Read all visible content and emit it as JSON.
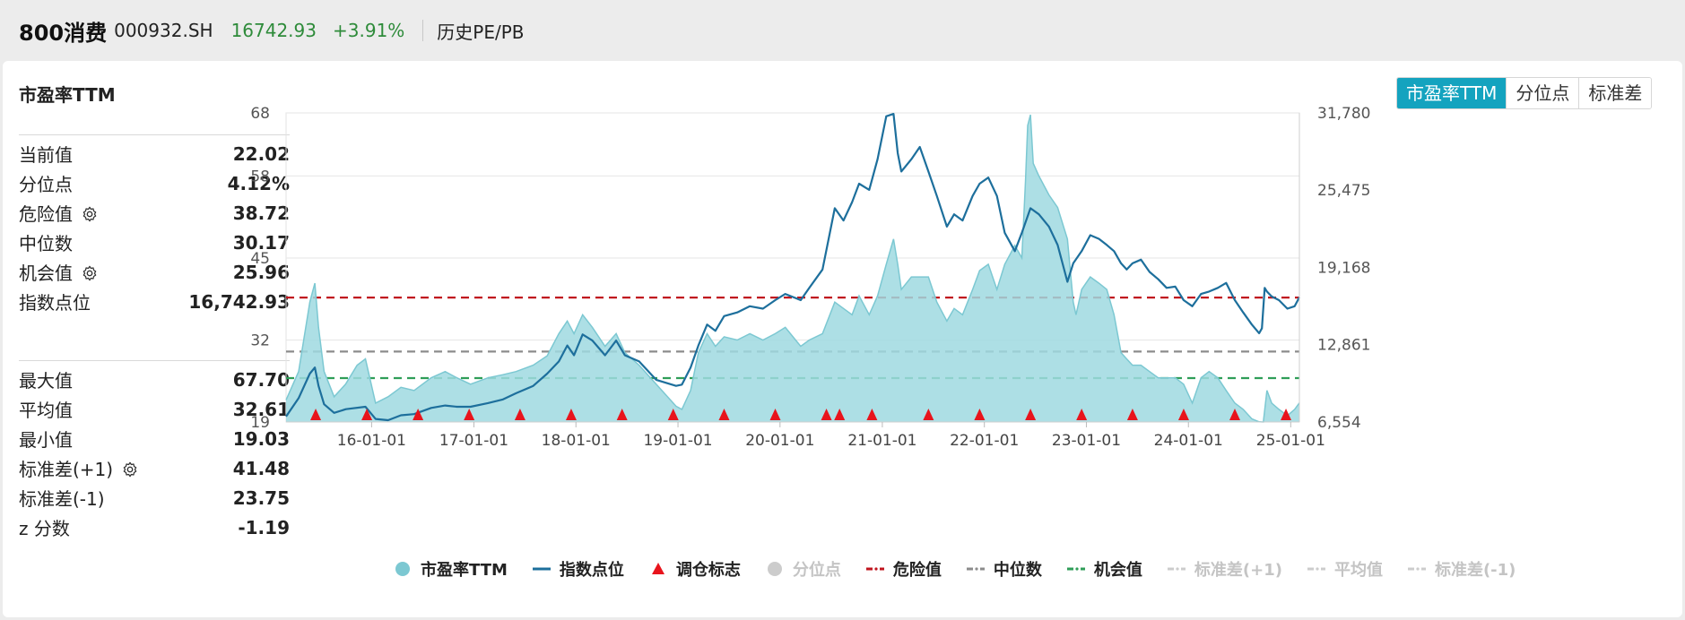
{
  "header": {
    "name": "800消费",
    "code": "000932.SH",
    "price": "16742.93",
    "change": "+3.91%",
    "link": "历史PE/PB"
  },
  "panel": {
    "title": "市盈率TTM",
    "tabs": [
      "市盈率TTM",
      "分位点",
      "标准差"
    ],
    "active_tab": 0
  },
  "stats_top": [
    {
      "label": "当前值",
      "value": "22.02",
      "gear": false
    },
    {
      "label": "分位点",
      "value": "4.12%",
      "gear": false
    },
    {
      "label": "危险值",
      "value": "38.72",
      "gear": true
    },
    {
      "label": "中位数",
      "value": "30.17",
      "gear": false
    },
    {
      "label": "机会值",
      "value": "25.96",
      "gear": true
    },
    {
      "label": "指数点位",
      "value": "16,742.93",
      "gear": false
    }
  ],
  "stats_bottom": [
    {
      "label": "最大值",
      "value": "67.70",
      "gear": false
    },
    {
      "label": "平均值",
      "value": "32.61",
      "gear": false
    },
    {
      "label": "最小值",
      "value": "19.03",
      "gear": false
    },
    {
      "label": "标准差(+1)",
      "value": "41.48",
      "gear": true
    },
    {
      "label": "标准差(-1)",
      "value": "23.75",
      "gear": false
    },
    {
      "label": "z 分数",
      "value": "-1.19",
      "gear": false
    }
  ],
  "colors": {
    "accent": "#14a3bf",
    "area": "#9fd9e0",
    "area_line": "#7cc8d2",
    "index_line": "#1d6f9c",
    "danger": "#c0141e",
    "median": "#8c8c8c",
    "opportunity": "#2f9e58",
    "marker": "#e8141c",
    "up": "#2e8b3a"
  },
  "legend": [
    {
      "label": "市盈率TTM",
      "symbol": "circle",
      "color": "#7cc8d2",
      "active": true
    },
    {
      "label": "指数点位",
      "symbol": "line",
      "color": "#1d6f9c",
      "active": true
    },
    {
      "label": "调仓标志",
      "symbol": "triangle",
      "color": "#e8141c",
      "active": true
    },
    {
      "label": "分位点",
      "symbol": "circle",
      "color": "#cccccc",
      "active": false
    },
    {
      "label": "危险值",
      "symbol": "dash",
      "color": "#c0141e",
      "active": true
    },
    {
      "label": "中位数",
      "symbol": "dash",
      "color": "#8c8c8c",
      "active": true
    },
    {
      "label": "机会值",
      "symbol": "dash",
      "color": "#2f9e58",
      "active": true
    },
    {
      "label": "标准差(+1)",
      "symbol": "dash",
      "color": "#cccccc",
      "active": false
    },
    {
      "label": "平均值",
      "symbol": "dash",
      "color": "#cccccc",
      "active": false
    },
    {
      "label": "标准差(-1)",
      "symbol": "dash",
      "color": "#cccccc",
      "active": false
    }
  ],
  "chart_data": {
    "type": "area",
    "title": "",
    "x_range": [
      "2015-03-01",
      "2025-02-01"
    ],
    "x_ticks": [
      "16-01-01",
      "17-01-01",
      "18-01-01",
      "19-01-01",
      "20-01-01",
      "21-01-01",
      "22-01-01",
      "23-01-01",
      "24-01-01",
      "25-01-01"
    ],
    "y_left_ticks": [
      "19",
      "32",
      "45",
      "58",
      "68"
    ],
    "y_left_range": [
      19,
      68
    ],
    "y_right_ticks": [
      "6,554",
      "12,861",
      "19,168",
      "25,475",
      "31,780"
    ],
    "y_right_range": [
      6554,
      31780
    ],
    "reference_lines": {
      "danger": 38.72,
      "median": 30.17,
      "opportunity": 25.96
    },
    "series": [
      {
        "name": "市盈率TTM",
        "axis": "left",
        "points": [
          [
            "2015-03-01",
            22.5
          ],
          [
            "2015-04-15",
            27
          ],
          [
            "2015-05-25",
            38
          ],
          [
            "2015-06-12",
            41
          ],
          [
            "2015-06-25",
            34
          ],
          [
            "2015-07-15",
            27
          ],
          [
            "2015-08-20",
            23
          ],
          [
            "2015-09-30",
            25
          ],
          [
            "2015-11-10",
            28
          ],
          [
            "2015-12-10",
            29
          ],
          [
            "2016-01-15",
            22
          ],
          [
            "2016-02-29",
            23
          ],
          [
            "2016-04-15",
            24.5
          ],
          [
            "2016-06-01",
            24
          ],
          [
            "2016-08-01",
            26
          ],
          [
            "2016-09-20",
            27
          ],
          [
            "2016-11-01",
            26
          ],
          [
            "2016-12-20",
            25
          ],
          [
            "2017-02-20",
            26
          ],
          [
            "2017-04-15",
            26.5
          ],
          [
            "2017-06-01",
            27
          ],
          [
            "2017-08-01",
            28
          ],
          [
            "2017-09-20",
            29.5
          ],
          [
            "2017-11-01",
            33
          ],
          [
            "2017-12-01",
            35
          ],
          [
            "2017-12-25",
            33
          ],
          [
            "2018-01-25",
            36
          ],
          [
            "2018-03-01",
            34
          ],
          [
            "2018-04-15",
            31
          ],
          [
            "2018-05-25",
            33
          ],
          [
            "2018-06-25",
            30
          ],
          [
            "2018-08-15",
            28
          ],
          [
            "2018-10-15",
            25
          ],
          [
            "2018-12-25",
            21.5
          ],
          [
            "2019-01-15",
            21
          ],
          [
            "2019-02-15",
            24
          ],
          [
            "2019-03-15",
            30
          ],
          [
            "2019-04-15",
            33
          ],
          [
            "2019-05-15",
            31
          ],
          [
            "2019-06-15",
            32.5
          ],
          [
            "2019-08-01",
            32
          ],
          [
            "2019-09-15",
            33
          ],
          [
            "2019-11-01",
            32
          ],
          [
            "2019-12-15",
            33
          ],
          [
            "2020-01-20",
            34
          ],
          [
            "2020-03-15",
            31
          ],
          [
            "2020-04-15",
            32
          ],
          [
            "2020-06-01",
            33
          ],
          [
            "2020-07-15",
            38
          ],
          [
            "2020-08-15",
            37
          ],
          [
            "2020-09-15",
            36
          ],
          [
            "2020-10-10",
            39
          ],
          [
            "2020-11-15",
            36
          ],
          [
            "2020-12-15",
            39
          ],
          [
            "2021-01-15",
            44
          ],
          [
            "2021-02-10",
            48
          ],
          [
            "2021-02-25",
            44
          ],
          [
            "2021-03-10",
            40
          ],
          [
            "2021-04-15",
            42
          ],
          [
            "2021-05-15",
            42
          ],
          [
            "2021-06-15",
            42
          ],
          [
            "2021-07-15",
            38
          ],
          [
            "2021-08-20",
            35
          ],
          [
            "2021-09-15",
            37
          ],
          [
            "2021-10-15",
            36
          ],
          [
            "2021-11-20",
            40
          ],
          [
            "2021-12-15",
            43
          ],
          [
            "2022-01-15",
            44
          ],
          [
            "2022-02-15",
            40
          ],
          [
            "2022-03-15",
            44
          ],
          [
            "2022-04-20",
            47
          ],
          [
            "2022-05-15",
            45
          ],
          [
            "2022-05-28",
            57
          ],
          [
            "2022-06-05",
            66
          ],
          [
            "2022-06-15",
            67.7
          ],
          [
            "2022-06-25",
            60
          ],
          [
            "2022-07-15",
            58
          ],
          [
            "2022-08-20",
            55
          ],
          [
            "2022-09-20",
            53
          ],
          [
            "2022-10-25",
            48
          ],
          [
            "2022-11-15",
            38
          ],
          [
            "2022-11-25",
            36
          ],
          [
            "2022-12-15",
            40
          ],
          [
            "2023-01-15",
            42
          ],
          [
            "2023-02-15",
            41
          ],
          [
            "2023-03-15",
            40
          ],
          [
            "2023-04-10",
            36
          ],
          [
            "2023-05-05",
            30
          ],
          [
            "2023-05-25",
            29
          ],
          [
            "2023-06-15",
            28
          ],
          [
            "2023-07-15",
            28
          ],
          [
            "2023-08-15",
            27
          ],
          [
            "2023-09-15",
            26
          ],
          [
            "2023-10-15",
            26
          ],
          [
            "2023-11-15",
            26
          ],
          [
            "2023-12-15",
            25
          ],
          [
            "2024-01-15",
            22
          ],
          [
            "2024-02-15",
            26
          ],
          [
            "2024-03-15",
            27
          ],
          [
            "2024-04-15",
            26
          ],
          [
            "2024-05-15",
            24
          ],
          [
            "2024-06-15",
            22
          ],
          [
            "2024-07-15",
            21
          ],
          [
            "2024-08-15",
            19.5
          ],
          [
            "2024-09-10",
            19.03
          ],
          [
            "2024-09-25",
            19
          ],
          [
            "2024-10-08",
            24
          ],
          [
            "2024-10-25",
            22
          ],
          [
            "2024-11-20",
            21
          ],
          [
            "2024-12-20",
            20
          ],
          [
            "2025-01-15",
            21
          ],
          [
            "2025-02-01",
            22.02
          ]
        ]
      },
      {
        "name": "指数点位",
        "axis": "right",
        "points": [
          [
            "2015-03-01",
            7000
          ],
          [
            "2015-04-15",
            8500
          ],
          [
            "2015-05-25",
            10500
          ],
          [
            "2015-06-12",
            11000
          ],
          [
            "2015-06-25",
            9500
          ],
          [
            "2015-07-15",
            8000
          ],
          [
            "2015-08-20",
            7300
          ],
          [
            "2015-10-01",
            7600
          ],
          [
            "2015-12-10",
            7800
          ],
          [
            "2016-01-15",
            6800
          ],
          [
            "2016-02-29",
            6700
          ],
          [
            "2016-04-15",
            7100
          ],
          [
            "2016-06-01",
            7200
          ],
          [
            "2016-08-01",
            7700
          ],
          [
            "2016-09-20",
            7900
          ],
          [
            "2016-11-01",
            7800
          ],
          [
            "2016-12-20",
            7800
          ],
          [
            "2017-02-20",
            8100
          ],
          [
            "2017-04-15",
            8400
          ],
          [
            "2017-06-01",
            8900
          ],
          [
            "2017-08-01",
            9500
          ],
          [
            "2017-09-20",
            10500
          ],
          [
            "2017-11-01",
            11500
          ],
          [
            "2017-12-01",
            12800
          ],
          [
            "2017-12-25",
            12000
          ],
          [
            "2018-01-25",
            13700
          ],
          [
            "2018-03-01",
            13200
          ],
          [
            "2018-04-15",
            12000
          ],
          [
            "2018-05-25",
            13200
          ],
          [
            "2018-06-25",
            12000
          ],
          [
            "2018-08-15",
            11500
          ],
          [
            "2018-10-15",
            10000
          ],
          [
            "2018-12-25",
            9500
          ],
          [
            "2019-01-15",
            9600
          ],
          [
            "2019-02-15",
            11000
          ],
          [
            "2019-03-15",
            12800
          ],
          [
            "2019-04-15",
            14500
          ],
          [
            "2019-05-15",
            14000
          ],
          [
            "2019-06-15",
            15200
          ],
          [
            "2019-08-01",
            15500
          ],
          [
            "2019-09-15",
            16000
          ],
          [
            "2019-11-01",
            15800
          ],
          [
            "2019-12-15",
            16500
          ],
          [
            "2020-01-20",
            17000
          ],
          [
            "2020-03-15",
            16500
          ],
          [
            "2020-04-15",
            17500
          ],
          [
            "2020-06-01",
            19000
          ],
          [
            "2020-07-15",
            24000
          ],
          [
            "2020-08-15",
            23000
          ],
          [
            "2020-09-15",
            24500
          ],
          [
            "2020-10-10",
            26000
          ],
          [
            "2020-11-15",
            25500
          ],
          [
            "2020-12-15",
            28000
          ],
          [
            "2021-01-15",
            31500
          ],
          [
            "2021-02-10",
            31700
          ],
          [
            "2021-02-25",
            28500
          ],
          [
            "2021-03-10",
            27000
          ],
          [
            "2021-04-15",
            28000
          ],
          [
            "2021-05-15",
            29000
          ],
          [
            "2021-06-15",
            27000
          ],
          [
            "2021-07-15",
            25000
          ],
          [
            "2021-08-20",
            22500
          ],
          [
            "2021-09-15",
            23500
          ],
          [
            "2021-10-15",
            23000
          ],
          [
            "2021-11-20",
            25000
          ],
          [
            "2021-12-15",
            26000
          ],
          [
            "2022-01-15",
            26500
          ],
          [
            "2022-02-15",
            25000
          ],
          [
            "2022-03-15",
            22000
          ],
          [
            "2022-04-20",
            20500
          ],
          [
            "2022-05-15",
            22000
          ],
          [
            "2022-06-15",
            24000
          ],
          [
            "2022-07-15",
            23500
          ],
          [
            "2022-08-20",
            22500
          ],
          [
            "2022-09-20",
            21000
          ],
          [
            "2022-10-25",
            18000
          ],
          [
            "2022-11-15",
            19500
          ],
          [
            "2022-12-15",
            20500
          ],
          [
            "2023-01-15",
            21800
          ],
          [
            "2023-02-15",
            21500
          ],
          [
            "2023-03-15",
            21000
          ],
          [
            "2023-04-10",
            20500
          ],
          [
            "2023-05-05",
            19500
          ],
          [
            "2023-05-25",
            19000
          ],
          [
            "2023-06-15",
            19500
          ],
          [
            "2023-07-15",
            19800
          ],
          [
            "2023-08-15",
            18800
          ],
          [
            "2023-09-15",
            18200
          ],
          [
            "2023-10-15",
            17500
          ],
          [
            "2023-11-15",
            17600
          ],
          [
            "2023-12-15",
            16500
          ],
          [
            "2024-01-15",
            16000
          ],
          [
            "2024-02-15",
            17000
          ],
          [
            "2024-03-15",
            17200
          ],
          [
            "2024-04-15",
            17500
          ],
          [
            "2024-05-15",
            17900
          ],
          [
            "2024-06-15",
            16500
          ],
          [
            "2024-07-15",
            15500
          ],
          [
            "2024-08-15",
            14500
          ],
          [
            "2024-09-10",
            13800
          ],
          [
            "2024-09-20",
            14200
          ],
          [
            "2024-09-30",
            17500
          ],
          [
            "2024-10-08",
            17200
          ],
          [
            "2024-10-25",
            16800
          ],
          [
            "2024-11-20",
            16500
          ],
          [
            "2024-12-20",
            15800
          ],
          [
            "2025-01-15",
            16000
          ],
          [
            "2025-02-01",
            16742.93
          ]
        ]
      }
    ],
    "rebalance_dates": [
      "2015-06-15",
      "2015-12-15",
      "2016-06-15",
      "2016-12-15",
      "2017-06-15",
      "2017-12-15",
      "2018-06-15",
      "2018-12-15",
      "2019-06-15",
      "2019-12-15",
      "2020-06-15",
      "2020-08-01",
      "2020-11-25",
      "2021-06-15",
      "2021-12-15",
      "2022-06-15",
      "2022-12-15",
      "2023-06-15",
      "2023-12-15",
      "2024-06-15",
      "2024-12-15"
    ],
    "legend_position": "bottom"
  }
}
